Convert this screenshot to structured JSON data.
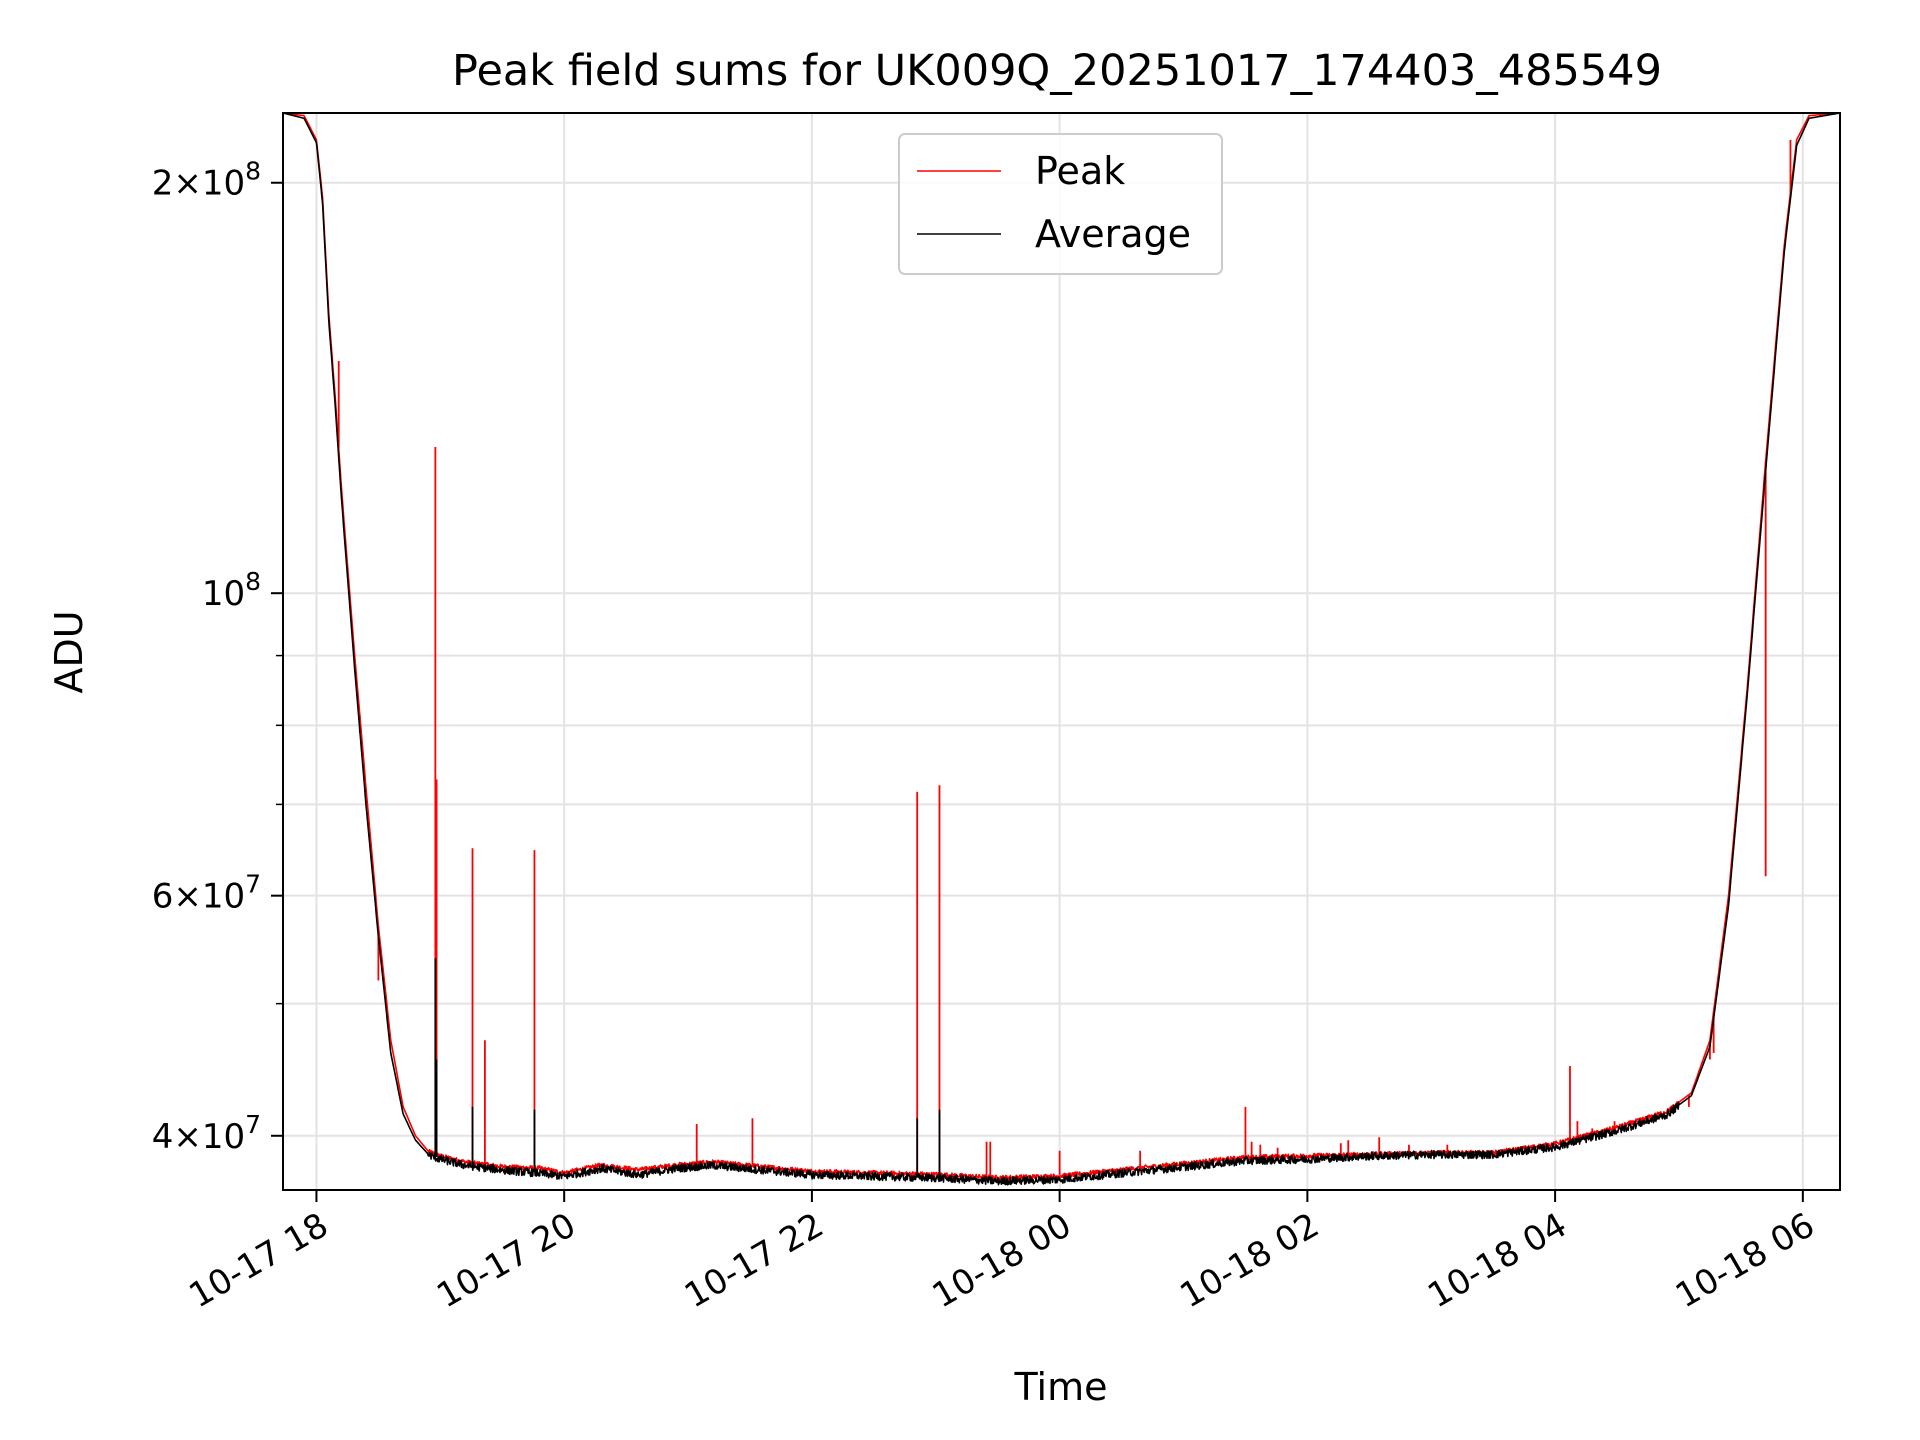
{
  "chart_data": {
    "type": "line",
    "title": "Peak field sums for UK009Q_20251017_174403_485549",
    "xlabel": "Time",
    "ylabel": "ADU",
    "yscale": "log",
    "ylim": [
      36500000,
      225000000
    ],
    "xlim_hours": [
      -0.27,
      12.3
    ],
    "grid": true,
    "legend_position": "upper center",
    "x_ticks": [
      {
        "hour": 0,
        "label": "10-17 18"
      },
      {
        "hour": 2,
        "label": "10-17 20"
      },
      {
        "hour": 4,
        "label": "10-17 22"
      },
      {
        "hour": 6,
        "label": "10-18 00"
      },
      {
        "hour": 8,
        "label": "10-18 02"
      },
      {
        "hour": 10,
        "label": "10-18 04"
      },
      {
        "hour": 12,
        "label": "10-18 06"
      }
    ],
    "y_ticks": [
      {
        "value": 40000000,
        "base": "4",
        "exp": "7"
      },
      {
        "value": 60000000,
        "base": "6",
        "exp": "7"
      },
      {
        "value": 100000000,
        "base": "10",
        "exp": "8"
      },
      {
        "value": 200000000,
        "base": "2",
        "exp": "8"
      }
    ],
    "y_minor_ticks": [
      50000000,
      70000000,
      80000000,
      90000000
    ],
    "series": [
      {
        "name": "Peak",
        "color": "#ff0000",
        "x_hours": [
          -0.27,
          -0.1,
          0.0,
          0.05,
          0.1,
          0.15,
          0.2,
          0.3,
          0.4,
          0.5,
          0.6,
          0.7,
          0.8,
          0.9,
          1.0,
          1.2,
          1.5,
          1.8,
          2.0,
          2.3,
          2.6,
          2.9,
          3.2,
          3.6,
          4.0,
          4.5,
          5.0,
          5.5,
          6.0,
          6.5,
          7.0,
          7.5,
          8.0,
          8.5,
          9.0,
          9.5,
          10.0,
          10.5,
          10.9,
          11.1,
          11.25,
          11.4,
          11.55,
          11.7,
          11.85,
          11.95,
          12.05,
          12.3
        ],
        "values": [
          225000000,
          224000000,
          215000000,
          195000000,
          160000000,
          140000000,
          120000000,
          92000000,
          72000000,
          57000000,
          47000000,
          42000000,
          40000000,
          39000000,
          38700000,
          38300000,
          38000000,
          37900000,
          37600000,
          38100000,
          37800000,
          38100000,
          38300000,
          38000000,
          37700000,
          37600000,
          37500000,
          37300000,
          37400000,
          37800000,
          38200000,
          38600000,
          38700000,
          38800000,
          38900000,
          38900000,
          39500000,
          40600000,
          41700000,
          43000000,
          47000000,
          60000000,
          85000000,
          125000000,
          180000000,
          215000000,
          224000000,
          225000000
        ],
        "spikes": [
          {
            "x_hour": 0.18,
            "value": 148000000
          },
          {
            "x_hour": 0.35,
            "value": 79000000
          },
          {
            "x_hour": 0.5,
            "value": 52000000
          },
          {
            "x_hour": 0.96,
            "value": 128000000
          },
          {
            "x_hour": 0.97,
            "value": 73000000
          },
          {
            "x_hour": 1.26,
            "value": 65000000
          },
          {
            "x_hour": 1.36,
            "value": 47000000
          },
          {
            "x_hour": 1.76,
            "value": 64800000
          },
          {
            "x_hour": 3.07,
            "value": 40800000
          },
          {
            "x_hour": 3.52,
            "value": 41200000
          },
          {
            "x_hour": 4.85,
            "value": 71500000
          },
          {
            "x_hour": 5.03,
            "value": 72300000
          },
          {
            "x_hour": 5.41,
            "value": 39600000
          },
          {
            "x_hour": 5.44,
            "value": 39600000
          },
          {
            "x_hour": 6.0,
            "value": 39000000
          },
          {
            "x_hour": 6.65,
            "value": 39000000
          },
          {
            "x_hour": 7.5,
            "value": 42000000
          },
          {
            "x_hour": 7.55,
            "value": 39600000
          },
          {
            "x_hour": 7.62,
            "value": 39400000
          },
          {
            "x_hour": 7.76,
            "value": 39200000
          },
          {
            "x_hour": 8.27,
            "value": 39500000
          },
          {
            "x_hour": 8.33,
            "value": 39700000
          },
          {
            "x_hour": 8.58,
            "value": 39900000
          },
          {
            "x_hour": 8.82,
            "value": 39400000
          },
          {
            "x_hour": 9.13,
            "value": 39400000
          },
          {
            "x_hour": 9.46,
            "value": 39000000
          },
          {
            "x_hour": 10.12,
            "value": 45000000
          },
          {
            "x_hour": 10.18,
            "value": 41000000
          },
          {
            "x_hour": 10.3,
            "value": 40500000
          },
          {
            "x_hour": 10.48,
            "value": 41000000
          },
          {
            "x_hour": 11.08,
            "value": 42000000
          },
          {
            "x_hour": 11.25,
            "value": 45500000
          },
          {
            "x_hour": 11.28,
            "value": 46000000
          },
          {
            "x_hour": 11.7,
            "value": 62000000
          },
          {
            "x_hour": 11.9,
            "value": 215000000
          }
        ]
      },
      {
        "name": "Average",
        "color": "#000000",
        "x_hours": [
          -0.27,
          -0.1,
          0.0,
          0.05,
          0.1,
          0.15,
          0.2,
          0.3,
          0.4,
          0.5,
          0.6,
          0.7,
          0.8,
          0.9,
          1.0,
          1.2,
          1.5,
          1.8,
          2.0,
          2.3,
          2.6,
          2.9,
          3.2,
          3.6,
          4.0,
          4.5,
          5.0,
          5.5,
          6.0,
          6.5,
          7.0,
          7.5,
          8.0,
          8.5,
          9.0,
          9.5,
          10.0,
          10.5,
          10.9,
          11.1,
          11.25,
          11.4,
          11.55,
          11.7,
          11.85,
          11.95,
          12.05,
          12.3
        ],
        "values": [
          225000000,
          223000000,
          214000000,
          193000000,
          158000000,
          138000000,
          118000000,
          90000000,
          70000000,
          56000000,
          46000000,
          41500000,
          39700000,
          38800000,
          38500000,
          38100000,
          37800000,
          37600000,
          37400000,
          37900000,
          37500000,
          37900000,
          38100000,
          37800000,
          37500000,
          37400000,
          37300000,
          37100000,
          37200000,
          37600000,
          38000000,
          38400000,
          38500000,
          38700000,
          38800000,
          38800000,
          39300000,
          40400000,
          41500000,
          42800000,
          46500000,
          59000000,
          84000000,
          123000000,
          178000000,
          213000000,
          223000000,
          225000000
        ],
        "spikes": [
          {
            "x_hour": 0.96,
            "value": 54000000
          },
          {
            "x_hour": 0.97,
            "value": 45500000
          },
          {
            "x_hour": 1.26,
            "value": 42000000
          },
          {
            "x_hour": 1.76,
            "value": 41800000
          },
          {
            "x_hour": 4.85,
            "value": 41200000
          },
          {
            "x_hour": 5.03,
            "value": 41800000
          }
        ]
      }
    ]
  }
}
